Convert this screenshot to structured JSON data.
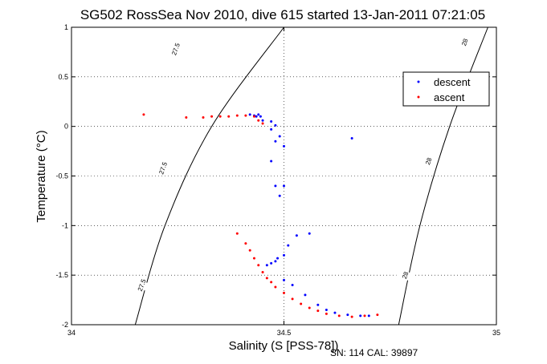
{
  "chart_data": {
    "type": "scatter",
    "title": "SG502 RossSea Nov 2010, dive 615 started 13-Jan-2011 07:21:05",
    "xlabel": "Salinity (S [PSS-78])",
    "ylabel": "Temperature (°C)",
    "footer": "SN: 114  CAL: 39897",
    "xlim": [
      34,
      35
    ],
    "ylim": [
      -2,
      1
    ],
    "x_ticks": [
      "34",
      "34.5",
      "35"
    ],
    "y_ticks": [
      "-2",
      "-1.5",
      "-1",
      "-0.5",
      "0",
      "0.5",
      "1"
    ],
    "grid": true,
    "legend": {
      "placement": "top-right",
      "entries": [
        "descent",
        "ascent"
      ]
    },
    "colors": {
      "descent": "#0000ff",
      "ascent": "#ff0000"
    },
    "density_contours": [
      {
        "label": "27.5",
        "points": [
          [
            34.15,
            -2.0
          ],
          [
            34.22,
            -1.0
          ],
          [
            34.33,
            0.0
          ],
          [
            34.5,
            1.0
          ]
        ]
      },
      {
        "label": "28",
        "points": [
          [
            34.77,
            -2.0
          ],
          [
            34.82,
            -1.0
          ],
          [
            34.89,
            0.0
          ],
          [
            34.98,
            1.0
          ]
        ]
      }
    ],
    "contour_labels": [
      {
        "text": "27.5",
        "x": 34.245,
        "y": 0.78
      },
      {
        "text": "27.5",
        "x": 34.215,
        "y": -0.42
      },
      {
        "text": "27.5",
        "x": 34.165,
        "y": -1.6
      },
      {
        "text": "28",
        "x": 34.925,
        "y": 0.85
      },
      {
        "text": "28",
        "x": 34.84,
        "y": -0.35
      },
      {
        "text": "28",
        "x": 34.785,
        "y": -1.5
      }
    ],
    "series": [
      {
        "name": "descent",
        "points": [
          [
            34.42,
            0.12
          ],
          [
            34.43,
            0.11
          ],
          [
            34.44,
            0.12
          ],
          [
            34.435,
            0.1
          ],
          [
            34.445,
            0.1
          ],
          [
            34.45,
            0.06
          ],
          [
            34.47,
            0.05
          ],
          [
            34.48,
            0.01
          ],
          [
            34.47,
            -0.03
          ],
          [
            34.49,
            -0.1
          ],
          [
            34.48,
            -0.15
          ],
          [
            34.5,
            -0.2
          ],
          [
            34.47,
            -0.35
          ],
          [
            34.5,
            -0.6
          ],
          [
            34.48,
            -0.6
          ],
          [
            34.49,
            -0.7
          ],
          [
            34.66,
            -0.12
          ],
          [
            34.56,
            -1.08
          ],
          [
            34.53,
            -1.1
          ],
          [
            34.51,
            -1.2
          ],
          [
            34.5,
            -1.3
          ],
          [
            34.485,
            -1.33
          ],
          [
            34.46,
            -1.4
          ],
          [
            34.47,
            -1.38
          ],
          [
            34.48,
            -1.36
          ],
          [
            34.5,
            -1.55
          ],
          [
            34.52,
            -1.6
          ],
          [
            34.55,
            -1.7
          ],
          [
            34.58,
            -1.8
          ],
          [
            34.6,
            -1.85
          ],
          [
            34.62,
            -1.88
          ],
          [
            34.65,
            -1.9
          ],
          [
            34.68,
            -1.91
          ],
          [
            34.7,
            -1.91
          ]
        ]
      },
      {
        "name": "ascent",
        "points": [
          [
            34.17,
            0.12
          ],
          [
            34.27,
            0.09
          ],
          [
            34.31,
            0.09
          ],
          [
            34.33,
            0.1
          ],
          [
            34.35,
            0.1
          ],
          [
            34.37,
            0.1
          ],
          [
            34.39,
            0.11
          ],
          [
            34.41,
            0.11
          ],
          [
            34.43,
            0.1
          ],
          [
            34.44,
            0.06
          ],
          [
            34.45,
            0.03
          ],
          [
            34.39,
            -1.08
          ],
          [
            34.41,
            -1.18
          ],
          [
            34.42,
            -1.25
          ],
          [
            34.43,
            -1.33
          ],
          [
            34.44,
            -1.4
          ],
          [
            34.45,
            -1.47
          ],
          [
            34.46,
            -1.53
          ],
          [
            34.47,
            -1.57
          ],
          [
            34.48,
            -1.62
          ],
          [
            34.5,
            -1.68
          ],
          [
            34.52,
            -1.74
          ],
          [
            34.54,
            -1.79
          ],
          [
            34.56,
            -1.83
          ],
          [
            34.58,
            -1.86
          ],
          [
            34.6,
            -1.89
          ],
          [
            34.63,
            -1.91
          ],
          [
            34.66,
            -1.92
          ],
          [
            34.69,
            -1.91
          ],
          [
            34.72,
            -1.9
          ]
        ]
      }
    ]
  }
}
